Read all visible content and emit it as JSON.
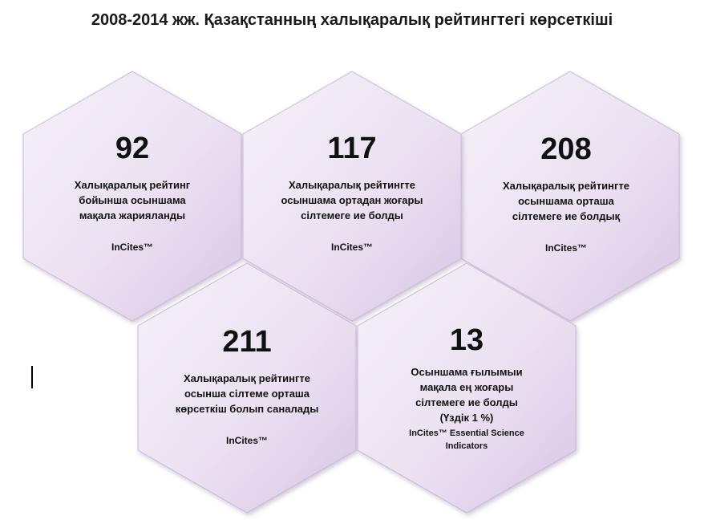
{
  "title": "2008-2014 жж. Қазақстанның халықаралық рейтингтегі көрсеткіші",
  "colors": {
    "hex_fill_light": "#f4eef8",
    "hex_fill_dark": "#d8c8e6",
    "hex_edge": "#bfaed0"
  },
  "cells": [
    {
      "value": "92",
      "desc_lines": [
        "Халықаралық рейтинг",
        "бойынша осыншама",
        "мақала жарияланды"
      ],
      "source_lines": [
        "InCites™"
      ]
    },
    {
      "value": "117",
      "desc_lines": [
        "Халықаралық рейтингте",
        "осыншама ортадан жоғары",
        "сілтемеге ие болды"
      ],
      "source_lines": [
        "InCites™"
      ]
    },
    {
      "value": "208",
      "desc_lines": [
        "Халықаралық рейтингте",
        "осыншама орташа",
        "сілтемеге ие болдық"
      ],
      "source_lines": [
        "InCites™"
      ]
    },
    {
      "value": "211",
      "desc_lines": [
        "Халықаралық рейтингте",
        "осынша сілтеме орташа",
        "көрсеткіш болып саналады"
      ],
      "source_lines": [
        "InCites™"
      ]
    },
    {
      "value": "13",
      "desc_lines": [
        "Осыншама ғылымыи",
        "мақала ең жоғары",
        "сілтемеге ие болды",
        "(Үздік 1 %)"
      ],
      "source_lines": [
        "InCites™ Essential Science",
        "Indicators"
      ]
    }
  ]
}
